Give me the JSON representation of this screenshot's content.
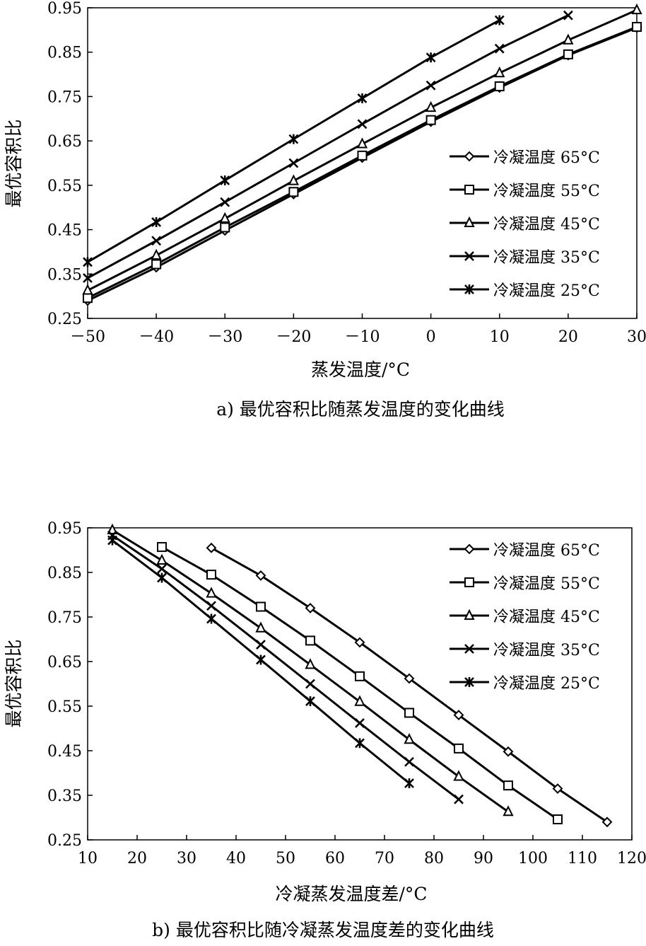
{
  "chart_data": [
    {
      "type": "line",
      "caption": "a) 最优容积比随蒸发温度的变化曲线",
      "xlabel": "蒸发温度/°C",
      "ylabel": "最优容积比",
      "xlim": [
        -50,
        30
      ],
      "ylim": [
        0.25,
        0.95
      ],
      "x_ticks": [
        -50,
        -40,
        -30,
        -20,
        -10,
        0,
        10,
        20,
        30
      ],
      "x_tick_labels": [
        "－50",
        "－40",
        "－30",
        "－20",
        "－10",
        "0",
        "10",
        "20",
        "30"
      ],
      "y_ticks": [
        0.25,
        0.35,
        0.45,
        0.55,
        0.65,
        0.75,
        0.85,
        0.95
      ],
      "y_tick_labels": [
        "0.25",
        "0.35",
        "0.45",
        "0.55",
        "0.65",
        "0.75",
        "0.85",
        "0.95"
      ],
      "grid": false,
      "legend_position": "right",
      "series": [
        {
          "name": "冷凝温度 65°C",
          "marker": "diamond",
          "x": [
            -50,
            -40,
            -30,
            -20,
            -10,
            0,
            10,
            20,
            30
          ],
          "y": [
            0.29,
            0.365,
            0.448,
            0.53,
            0.612,
            0.693,
            0.77,
            0.843,
            0.905
          ]
        },
        {
          "name": "冷凝温度 55°C",
          "marker": "square",
          "x": [
            -50,
            -40,
            -30,
            -20,
            -10,
            0,
            10,
            20,
            30
          ],
          "y": [
            0.296,
            0.372,
            0.455,
            0.535,
            0.617,
            0.697,
            0.773,
            0.845,
            0.907
          ]
        },
        {
          "name": "冷凝温度 45°C",
          "marker": "triangle",
          "x": [
            -50,
            -40,
            -30,
            -20,
            -10,
            0,
            10,
            20,
            30
          ],
          "y": [
            0.313,
            0.392,
            0.475,
            0.56,
            0.643,
            0.725,
            0.803,
            0.877,
            0.945
          ]
        },
        {
          "name": "冷凝温度 35°C",
          "marker": "x",
          "x": [
            -50,
            -40,
            -30,
            -20,
            -10,
            0,
            10,
            20
          ],
          "y": [
            0.341,
            0.425,
            0.512,
            0.6,
            0.688,
            0.775,
            0.858,
            0.933
          ]
        },
        {
          "name": "冷凝温度 25°C",
          "marker": "star",
          "x": [
            -50,
            -40,
            -30,
            -20,
            -10,
            0,
            10
          ],
          "y": [
            0.377,
            0.467,
            0.561,
            0.654,
            0.746,
            0.838,
            0.922
          ]
        }
      ]
    },
    {
      "type": "line",
      "caption": "b) 最优容积比随冷凝蒸发温度差的变化曲线",
      "xlabel": "冷凝蒸发温度差/°C",
      "ylabel": "最优容积比",
      "xlim": [
        10,
        120
      ],
      "ylim": [
        0.25,
        0.95
      ],
      "x_ticks": [
        10,
        20,
        30,
        40,
        50,
        60,
        70,
        80,
        90,
        100,
        110,
        120
      ],
      "x_tick_labels": [
        "10",
        "20",
        "30",
        "40",
        "50",
        "60",
        "70",
        "80",
        "90",
        "100",
        "110",
        "120"
      ],
      "y_ticks": [
        0.25,
        0.35,
        0.45,
        0.55,
        0.65,
        0.75,
        0.85,
        0.95
      ],
      "y_tick_labels": [
        "0.25",
        "0.35",
        "0.45",
        "0.55",
        "0.65",
        "0.75",
        "0.85",
        "0.95"
      ],
      "grid": false,
      "legend_position": "top-right",
      "series": [
        {
          "name": "冷凝温度 65°C",
          "marker": "diamond",
          "x": [
            35,
            45,
            55,
            65,
            75,
            85,
            95,
            105,
            115
          ],
          "y": [
            0.905,
            0.843,
            0.77,
            0.693,
            0.612,
            0.53,
            0.448,
            0.365,
            0.29
          ]
        },
        {
          "name": "冷凝温度 55°C",
          "marker": "square",
          "x": [
            25,
            35,
            45,
            55,
            65,
            75,
            85,
            95,
            105
          ],
          "y": [
            0.907,
            0.845,
            0.773,
            0.697,
            0.617,
            0.535,
            0.455,
            0.372,
            0.296
          ]
        },
        {
          "name": "冷凝温度 45°C",
          "marker": "triangle",
          "x": [
            15,
            25,
            35,
            45,
            55,
            65,
            75,
            85,
            95
          ],
          "y": [
            0.945,
            0.877,
            0.803,
            0.725,
            0.643,
            0.56,
            0.475,
            0.392,
            0.313
          ]
        },
        {
          "name": "冷凝温度 35°C",
          "marker": "x",
          "x": [
            15,
            25,
            35,
            45,
            55,
            65,
            75,
            85
          ],
          "y": [
            0.933,
            0.858,
            0.775,
            0.688,
            0.6,
            0.512,
            0.425,
            0.341
          ]
        },
        {
          "name": "冷凝温度 25°C",
          "marker": "star",
          "x": [
            15,
            25,
            35,
            45,
            55,
            65,
            75
          ],
          "y": [
            0.922,
            0.838,
            0.746,
            0.654,
            0.561,
            0.467,
            0.377
          ]
        }
      ]
    }
  ]
}
